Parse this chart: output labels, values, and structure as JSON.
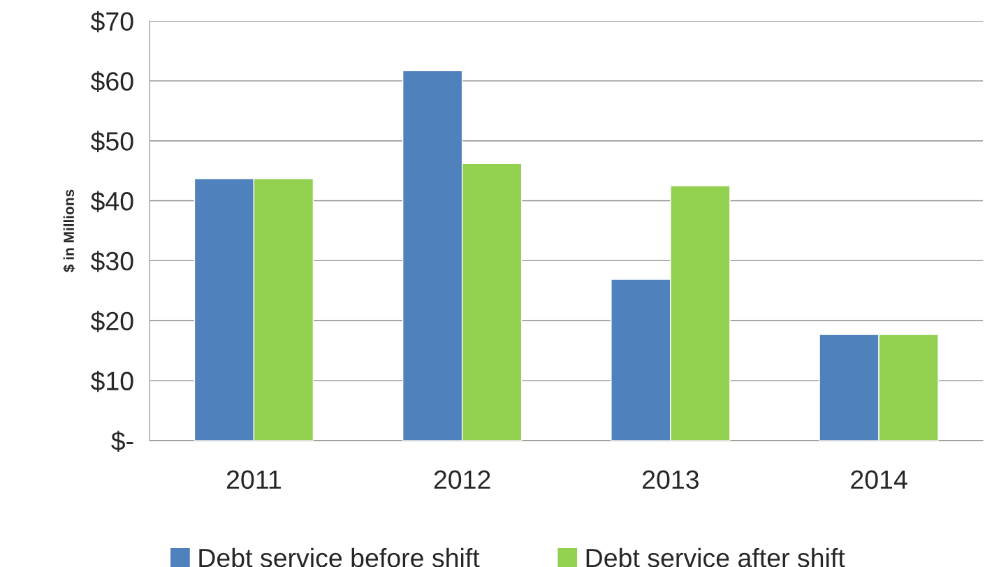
{
  "chart_data": {
    "type": "bar",
    "ylabel": "$ in Millions",
    "categories": [
      "2011",
      "2012",
      "2013",
      "2014"
    ],
    "series": [
      {
        "name": "Debt service before shift",
        "color": "#4f81bd",
        "values": [
          43.7,
          61.7,
          26.9,
          17.7
        ]
      },
      {
        "name": "Debt service after shift",
        "color": "#92d050",
        "values": [
          43.7,
          46.2,
          42.5,
          17.7
        ]
      }
    ],
    "ylim": [
      0,
      70
    ],
    "yticks": [
      {
        "value": 0,
        "label": "$-"
      },
      {
        "value": 10,
        "label": "$10"
      },
      {
        "value": 20,
        "label": "$20"
      },
      {
        "value": 30,
        "label": "$30"
      },
      {
        "value": 40,
        "label": "$40"
      },
      {
        "value": 50,
        "label": "$50"
      },
      {
        "value": 60,
        "label": "$60"
      },
      {
        "value": 70,
        "label": "$70"
      }
    ],
    "grid": "y",
    "legend": "bottom"
  }
}
